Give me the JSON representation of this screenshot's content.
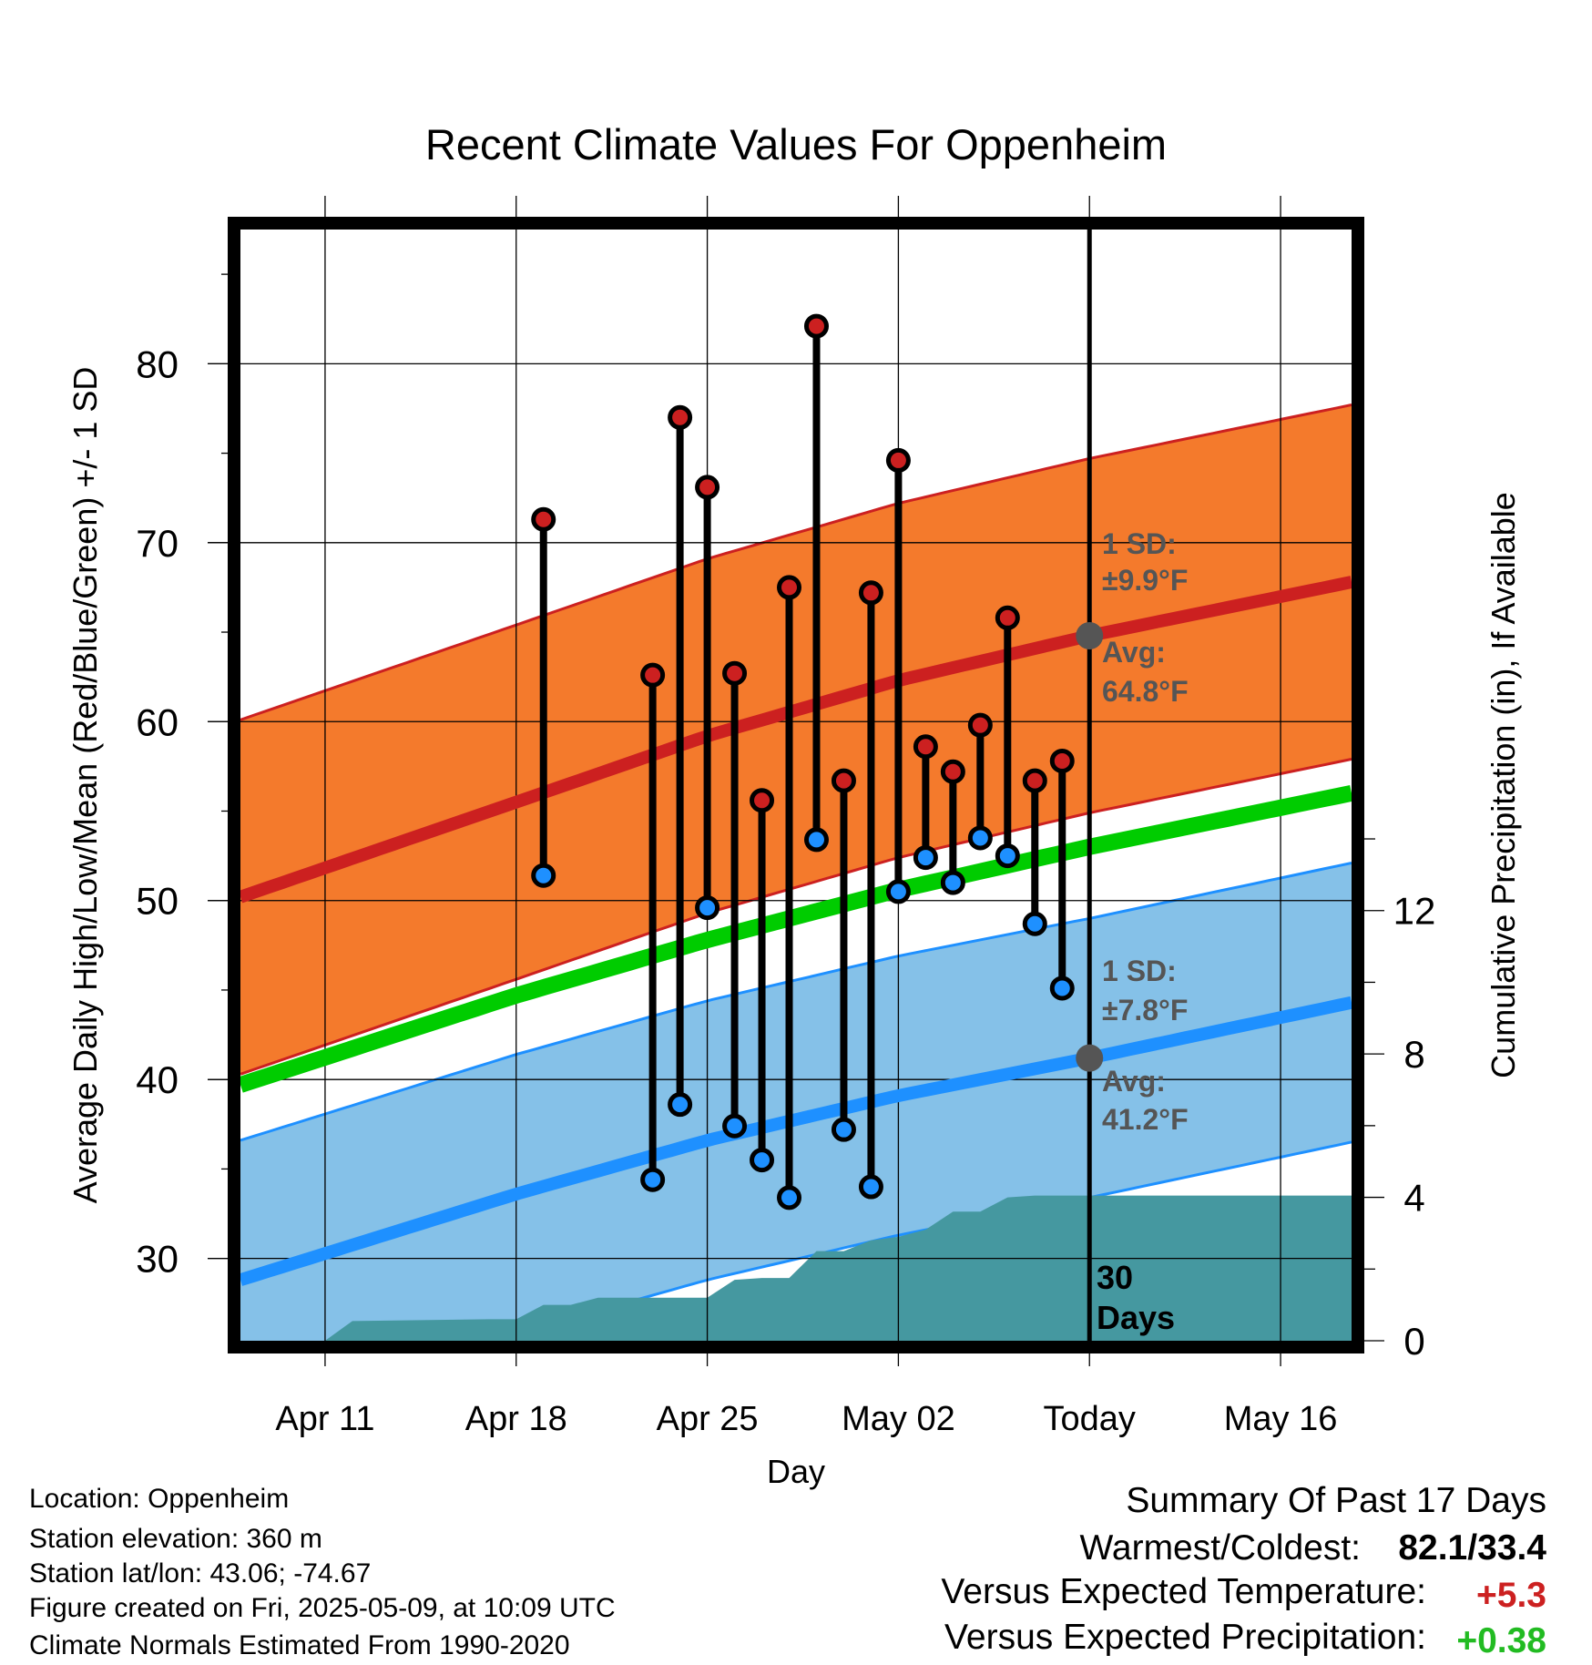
{
  "chart_data": {
    "type": "line",
    "title": "Recent Climate Values For Oppenheim",
    "xlabel": "Day",
    "ylabel": "Average Daily High/Low/Mean (Red/Blue/Green) +/- 1 SD",
    "ylabel_right": "Cumulative Precipitation (in), If Available",
    "x_tick_labels": [
      "Apr 11",
      "Apr 18",
      "Apr 25",
      "May 02",
      "Today",
      "May 16"
    ],
    "x_tick_days": [
      0,
      7,
      14,
      21,
      28,
      35
    ],
    "x_range_days": [
      -3.1,
      37.6
    ],
    "ylim": [
      25.4,
      87.5
    ],
    "y_ticks": [
      30,
      40,
      50,
      60,
      70,
      80
    ],
    "y2lim": [
      0,
      31
    ],
    "y2_ticks": [
      0,
      4,
      8,
      12
    ],
    "grid": true,
    "normals": {
      "days": [
        -3.1,
        7,
        14,
        21,
        28,
        37.6
      ],
      "high": [
        50.2,
        55.5,
        59.2,
        62.3,
        64.8,
        67.8
      ],
      "low": [
        28.8,
        33.6,
        36.6,
        39.1,
        41.2,
        44.3
      ],
      "mean": [
        39.7,
        44.7,
        47.8,
        50.6,
        53.0,
        56.0
      ],
      "high_sd": 9.9,
      "low_sd": 7.8
    },
    "daily": [
      {
        "day": 8,
        "high": 71.3,
        "low": 51.4
      },
      {
        "day": 12,
        "high": 62.6,
        "low": 34.4
      },
      {
        "day": 13,
        "high": 77.0,
        "low": 38.6
      },
      {
        "day": 14,
        "high": 73.1,
        "low": 49.6
      },
      {
        "day": 15,
        "high": 62.7,
        "low": 37.4
      },
      {
        "day": 16,
        "high": 55.6,
        "low": 35.5
      },
      {
        "day": 17,
        "high": 67.5,
        "low": 33.4
      },
      {
        "day": 18,
        "high": 82.1,
        "low": 53.4
      },
      {
        "day": 19,
        "high": 56.7,
        "low": 37.2
      },
      {
        "day": 20,
        "high": 67.2,
        "low": 34.0
      },
      {
        "day": 21,
        "high": 74.6,
        "low": 50.5
      },
      {
        "day": 22,
        "high": 58.6,
        "low": 52.4
      },
      {
        "day": 23,
        "high": 57.2,
        "low": 51.0
      },
      {
        "day": 24,
        "high": 59.8,
        "low": 53.5
      },
      {
        "day": 25,
        "high": 65.8,
        "low": 52.5
      },
      {
        "day": 26,
        "high": 56.7,
        "low": 48.7
      },
      {
        "day": 27,
        "high": 57.8,
        "low": 45.1
      }
    ],
    "precip": {
      "days": [
        -3.1,
        0,
        1,
        6,
        7,
        8,
        9,
        10,
        13,
        14,
        15,
        16,
        17,
        18,
        19,
        20,
        21,
        22,
        23,
        24,
        25,
        26,
        37.6
      ],
      "values": [
        0,
        0,
        0.55,
        0.6,
        0.6,
        1.0,
        1.0,
        1.2,
        1.2,
        1.2,
        1.7,
        1.75,
        1.75,
        2.5,
        2.5,
        2.8,
        2.9,
        3.1,
        3.6,
        3.6,
        4.0,
        4.05,
        4.05
      ]
    },
    "annotations": {
      "high_sd": [
        "1 SD:",
        "±9.9°F"
      ],
      "high_avg": [
        "Avg:",
        "64.8°F"
      ],
      "low_sd": [
        "1 SD:",
        "±7.8°F"
      ],
      "low_avg": [
        "Avg:",
        "41.2°F"
      ],
      "days": [
        "30",
        "Days"
      ]
    },
    "colors": {
      "high_band": "#f47a2c",
      "high_line": "#cc2020",
      "low_band": "#85c1e8",
      "low_line": "#1e90ff",
      "mean_line": "#00cc00",
      "precip": "#4598a0",
      "high_dot": "#cc2020",
      "low_dot": "#1e90ff",
      "annotation": "#555555"
    }
  },
  "footer": {
    "info_lines": [
      "Location: Oppenheim",
      "Station elevation: 360 m",
      "Station lat/lon: 43.06; -74.67",
      "Figure created on Fri, 2025-05-09, at 10:09 UTC",
      "Climate Normals Estimated From 1990-2020"
    ],
    "summary_title": "Summary Of Past 17 Days",
    "warmest_coldest_label": "Warmest/Coldest:",
    "warmest_coldest_value": "82.1/33.4",
    "vs_temp_label": "Versus Expected Temperature:",
    "vs_temp_value": "+5.3",
    "vs_temp_color": "#cc2020",
    "vs_precip_label": "Versus Expected Precipitation:",
    "vs_precip_value": "+0.38",
    "vs_precip_color": "#22bb22"
  }
}
